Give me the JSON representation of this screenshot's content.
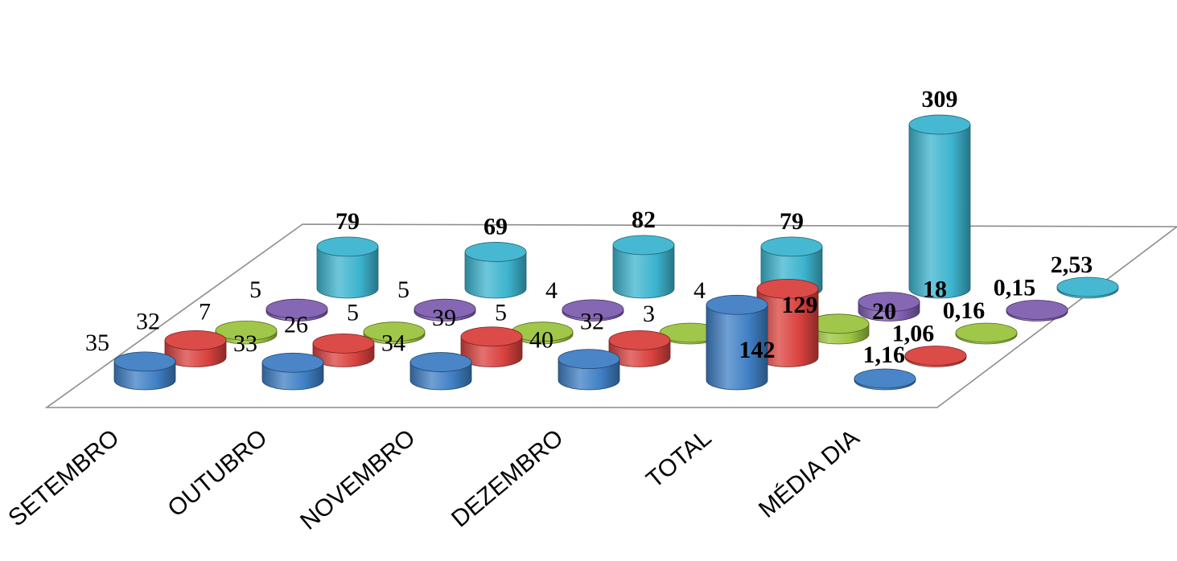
{
  "chart_data": {
    "type": "bar",
    "style": "3d-cylinder",
    "categories": [
      "SETEMBRO",
      "OUTUBRO",
      "NOVEMBRO",
      "DEZEMBRO",
      "TOTAL",
      "MÉDIA DIA"
    ],
    "series": [
      {
        "values": [
          35,
          33,
          34,
          40,
          142,
          1.16
        ],
        "labels": [
          "35",
          "33",
          "34",
          "40",
          "142",
          "1,16"
        ],
        "color": "#3f7fc4"
      },
      {
        "values": [
          32,
          26,
          39,
          32,
          129,
          1.06
        ],
        "labels": [
          "32",
          "26",
          "39",
          "32",
          "129",
          "1,06"
        ],
        "color": "#d9413e"
      },
      {
        "values": [
          7,
          5,
          5,
          3,
          20,
          0.16
        ],
        "labels": [
          "7",
          "5",
          "5",
          "3",
          "20",
          "0,16"
        ],
        "color": "#9bc43f"
      },
      {
        "values": [
          5,
          5,
          4,
          4,
          18,
          0.15
        ],
        "labels": [
          "5",
          "5",
          "4",
          "4",
          "18",
          "0,15"
        ],
        "color": "#7f5fb0"
      },
      {
        "values": [
          79,
          69,
          82,
          79,
          309,
          2.53
        ],
        "labels": [
          "79",
          "69",
          "82",
          "79",
          "309",
          "2,53"
        ],
        "color": "#3db4cf"
      }
    ],
    "bold_series": [
      4
    ],
    "bold_categories": [
      4,
      5
    ],
    "title": "",
    "xlabel": "",
    "ylabel": "",
    "legend": "none",
    "grid": false
  }
}
